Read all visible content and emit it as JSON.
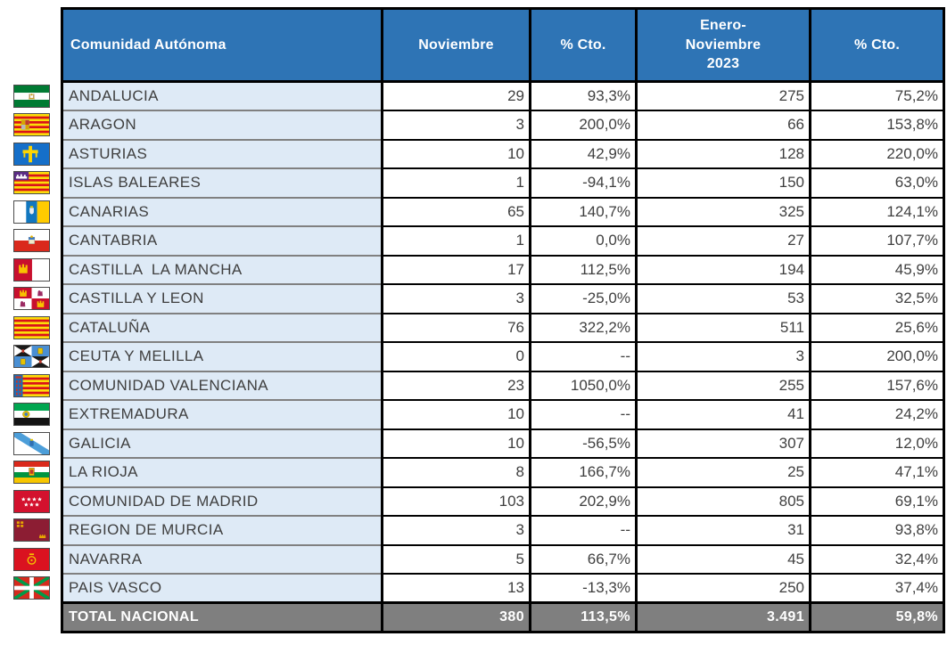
{
  "chart_data": {
    "type": "table",
    "columns": [
      "Comunidad Autónoma",
      "Noviembre",
      "% Cto.",
      "Enero-\nNoviembre\n2023",
      "% Cto."
    ],
    "rows": [
      {
        "flag": "andalucia",
        "name": "ANDALUCIA",
        "values": [
          "29",
          "93,3%",
          "275",
          "75,2%"
        ]
      },
      {
        "flag": "aragon",
        "name": "ARAGON",
        "values": [
          "3",
          "200,0%",
          "66",
          "153,8%"
        ]
      },
      {
        "flag": "asturias",
        "name": "ASTURIAS",
        "values": [
          "10",
          "42,9%",
          "128",
          "220,0%"
        ]
      },
      {
        "flag": "baleares",
        "name": "ISLAS BALEARES",
        "values": [
          "1",
          "-94,1%",
          "150",
          "63,0%"
        ]
      },
      {
        "flag": "canarias",
        "name": "CANARIAS",
        "values": [
          "65",
          "140,7%",
          "325",
          "124,1%"
        ]
      },
      {
        "flag": "cantabria",
        "name": "CANTABRIA",
        "values": [
          "1",
          "0,0%",
          "27",
          "107,7%"
        ]
      },
      {
        "flag": "castillalamancha",
        "name": "CASTILLA  LA MANCHA",
        "values": [
          "17",
          "112,5%",
          "194",
          "45,9%"
        ]
      },
      {
        "flag": "castillayleon",
        "name": "CASTILLA Y LEON",
        "values": [
          "3",
          "-25,0%",
          "53",
          "32,5%"
        ]
      },
      {
        "flag": "cataluna",
        "name": "CATALUÑA",
        "values": [
          "76",
          "322,2%",
          "511",
          "25,6%"
        ]
      },
      {
        "flag": "ceutaymelilla",
        "name": "CEUTA Y MELILLA",
        "values": [
          "0",
          "--",
          "3",
          "200,0%"
        ]
      },
      {
        "flag": "valenciana",
        "name": "COMUNIDAD VALENCIANA",
        "values": [
          "23",
          "1050,0%",
          "255",
          "157,6%"
        ]
      },
      {
        "flag": "extremadura",
        "name": "EXTREMADURA",
        "values": [
          "10",
          "--",
          "41",
          "24,2%"
        ]
      },
      {
        "flag": "galicia",
        "name": "GALICIA",
        "values": [
          "10",
          "-56,5%",
          "307",
          "12,0%"
        ]
      },
      {
        "flag": "larioja",
        "name": "LA RIOJA",
        "values": [
          "8",
          "166,7%",
          "25",
          "47,1%"
        ]
      },
      {
        "flag": "madrid",
        "name": "COMUNIDAD DE MADRID",
        "values": [
          "103",
          "202,9%",
          "805",
          "69,1%"
        ]
      },
      {
        "flag": "murcia",
        "name": "REGION DE MURCIA",
        "values": [
          "3",
          "--",
          "31",
          "93,8%"
        ]
      },
      {
        "flag": "navarra",
        "name": "NAVARRA",
        "values": [
          "5",
          "66,7%",
          "45",
          "32,4%"
        ]
      },
      {
        "flag": "paisvasco",
        "name": "PAIS VASCO",
        "values": [
          "13",
          "-13,3%",
          "250",
          "37,4%"
        ]
      }
    ],
    "total": {
      "name": "TOTAL NACIONAL",
      "values": [
        "380",
        "113,5%",
        "3.491",
        "59,8%"
      ]
    },
    "layout_hints": {
      "grid": true,
      "label_column_align": "left",
      "value_columns_align": "right"
    }
  },
  "colors": {
    "header_bg": "#2E74B5",
    "label_bg": "#DEEAF6",
    "total_bg": "#7F7F7F",
    "row_separator_gray": "#808080",
    "grid_black": "#000000",
    "text": "#3F3F3F",
    "header_text": "#FFFFFF"
  }
}
